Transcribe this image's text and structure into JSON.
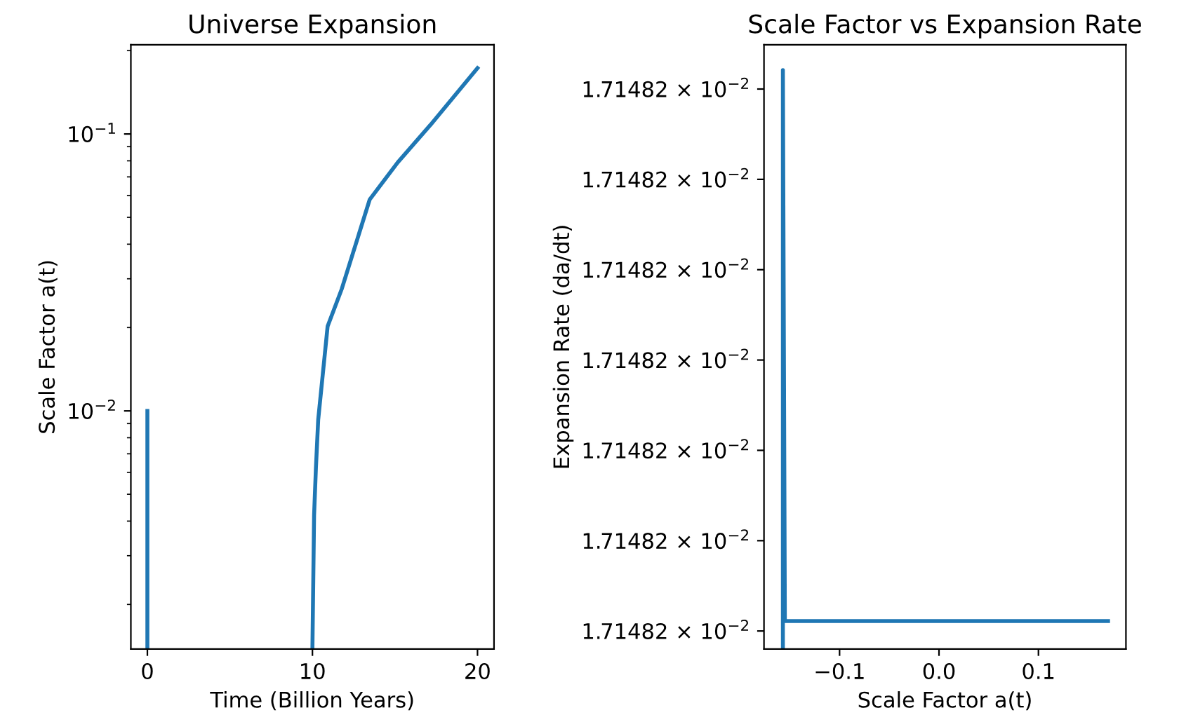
{
  "chart_data": [
    {
      "type": "line",
      "title": "Universe Expansion",
      "xlabel": "Time (Billion Years)",
      "ylabel": "Scale Factor a(t)",
      "log": "y",
      "xlim": [
        -1,
        21
      ],
      "xticks": [
        0,
        10,
        20
      ],
      "ylim": [
        0.00138,
        0.21
      ],
      "yticks": [
        {
          "value": 0.1,
          "label": "10$^{−1}$"
        },
        {
          "value": 0.01,
          "label": "10$^{−2}$"
        }
      ],
      "grid": false,
      "legend": false,
      "series": [
        {
          "color": "#1f77b4",
          "x": [
            0,
            0,
            5,
            10,
            10.1,
            10.21,
            10.35,
            10.92,
            11.77,
            13.47,
            15.17,
            17.16,
            20
          ],
          "values": [
            0.01,
            0.0014,
            null,
            0.0014,
            0.0042,
            0.0062,
            0.0093,
            0.0202,
            0.0275,
            0.058,
            0.079,
            0.108,
            0.173
          ]
        }
      ]
    },
    {
      "type": "line",
      "title": "Scale Factor vs Expansion Rate",
      "xlabel": "Scale Factor a(t)",
      "ylabel": "Expansion Rate (da/dt)",
      "xlim": [
        -0.176,
        0.188
      ],
      "xticks": [
        {
          "value": -0.1,
          "label": "−0.1"
        },
        {
          "value": 0.0,
          "label": "0.0"
        },
        {
          "value": 0.1,
          "label": "0.1"
        }
      ],
      "ylim": [
        0.0171481998,
        0.01714820649
      ],
      "yticks": [
        {
          "value": 0.0171482,
          "label": "1.71482 × 10$^{−2}$"
        },
        {
          "value": 0.017148201,
          "label": "1.71482 × 10$^{−2}$"
        },
        {
          "value": 0.017148202,
          "label": "1.71482 × 10$^{−2}$"
        },
        {
          "value": 0.017148203,
          "label": "1.71482 × 10$^{−2}$"
        },
        {
          "value": 0.017148204,
          "label": "1.71482 × 10$^{−2}$"
        },
        {
          "value": 0.017148205,
          "label": "1.71482 × 10$^{−2}$"
        },
        {
          "value": 0.017148206,
          "label": "1.71482 × 10$^{−2}$"
        }
      ],
      "grid": false,
      "legend": false,
      "series": [
        {
          "color": "#1f77b4",
          "x": [
            -0.157,
            -0.157,
            -0.155,
            0.17
          ],
          "values": [
            0.0171481998,
            0.01714820621,
            0.01714820011,
            0.01714820011
          ]
        }
      ]
    }
  ]
}
